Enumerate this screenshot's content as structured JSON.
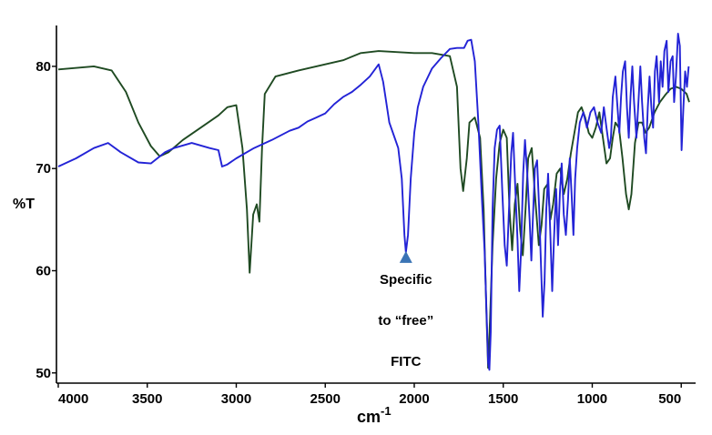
{
  "chart_data": {
    "type": "line",
    "title": "",
    "xlabel": "cm",
    "xlabel_superscript": "-1",
    "ylabel": "%T",
    "xlim": [
      4000,
      450
    ],
    "ylim": [
      49,
      84
    ],
    "x_reversed": true,
    "grid": false,
    "x_ticks": [
      4000,
      3500,
      3000,
      2500,
      2000,
      1500,
      1000,
      500
    ],
    "y_ticks": [
      50,
      60,
      70,
      80
    ],
    "series": [
      {
        "color": "#1f4a22",
        "points": [
          [
            4000,
            79.7
          ],
          [
            3800,
            80.0
          ],
          [
            3700,
            79.6
          ],
          [
            3620,
            77.5
          ],
          [
            3550,
            74.5
          ],
          [
            3480,
            72.2
          ],
          [
            3430,
            71.2
          ],
          [
            3380,
            71.6
          ],
          [
            3300,
            72.8
          ],
          [
            3200,
            74.0
          ],
          [
            3100,
            75.2
          ],
          [
            3050,
            76.0
          ],
          [
            3000,
            76.2
          ],
          [
            2965,
            72.0
          ],
          [
            2940,
            66.0
          ],
          [
            2925,
            59.8
          ],
          [
            2905,
            65.5
          ],
          [
            2885,
            66.5
          ],
          [
            2870,
            64.8
          ],
          [
            2855,
            72.0
          ],
          [
            2840,
            77.3
          ],
          [
            2780,
            79.0
          ],
          [
            2650,
            79.6
          ],
          [
            2500,
            80.2
          ],
          [
            2400,
            80.6
          ],
          [
            2300,
            81.3
          ],
          [
            2200,
            81.5
          ],
          [
            2100,
            81.4
          ],
          [
            2000,
            81.3
          ],
          [
            1900,
            81.3
          ],
          [
            1800,
            81.0
          ],
          [
            1760,
            78.0
          ],
          [
            1740,
            70.0
          ],
          [
            1725,
            67.8
          ],
          [
            1705,
            71.0
          ],
          [
            1690,
            74.5
          ],
          [
            1660,
            75.0
          ],
          [
            1630,
            73.0
          ],
          [
            1610,
            66.0
          ],
          [
            1595,
            56.0
          ],
          [
            1585,
            50.5
          ],
          [
            1575,
            55.0
          ],
          [
            1560,
            62.5
          ],
          [
            1540,
            69.0
          ],
          [
            1520,
            72.5
          ],
          [
            1500,
            73.8
          ],
          [
            1480,
            73.0
          ],
          [
            1465,
            66.0
          ],
          [
            1450,
            62.0
          ],
          [
            1435,
            66.5
          ],
          [
            1420,
            68.5
          ],
          [
            1405,
            64.0
          ],
          [
            1390,
            61.5
          ],
          [
            1375,
            66.0
          ],
          [
            1360,
            71.0
          ],
          [
            1340,
            72.0
          ],
          [
            1320,
            67.0
          ],
          [
            1300,
            62.5
          ],
          [
            1285,
            64.5
          ],
          [
            1270,
            68.0
          ],
          [
            1250,
            68.5
          ],
          [
            1235,
            65.0
          ],
          [
            1220,
            66.5
          ],
          [
            1200,
            69.5
          ],
          [
            1180,
            70.0
          ],
          [
            1160,
            67.5
          ],
          [
            1140,
            69.0
          ],
          [
            1120,
            71.5
          ],
          [
            1100,
            73.5
          ],
          [
            1080,
            75.5
          ],
          [
            1060,
            76.0
          ],
          [
            1040,
            75.0
          ],
          [
            1020,
            73.5
          ],
          [
            1000,
            73.0
          ],
          [
            980,
            74.0
          ],
          [
            960,
            75.5
          ],
          [
            940,
            73.0
          ],
          [
            920,
            70.5
          ],
          [
            900,
            71.0
          ],
          [
            885,
            73.0
          ],
          [
            870,
            74.5
          ],
          [
            850,
            74.0
          ],
          [
            830,
            71.0
          ],
          [
            810,
            67.5
          ],
          [
            795,
            66.0
          ],
          [
            780,
            67.5
          ],
          [
            760,
            72.5
          ],
          [
            740,
            74.5
          ],
          [
            720,
            74.5
          ],
          [
            700,
            73.5
          ],
          [
            680,
            74.0
          ],
          [
            650,
            75.5
          ],
          [
            620,
            76.5
          ],
          [
            590,
            77.2
          ],
          [
            560,
            77.8
          ],
          [
            530,
            78.0
          ],
          [
            500,
            77.8
          ],
          [
            470,
            77.3
          ],
          [
            455,
            76.5
          ]
        ]
      },
      {
        "color": "#2323d6",
        "points": [
          [
            4000,
            70.2
          ],
          [
            3900,
            71.0
          ],
          [
            3800,
            72.0
          ],
          [
            3720,
            72.5
          ],
          [
            3650,
            71.6
          ],
          [
            3550,
            70.6
          ],
          [
            3480,
            70.5
          ],
          [
            3400,
            71.6
          ],
          [
            3350,
            72.0
          ],
          [
            3250,
            72.5
          ],
          [
            3150,
            72.0
          ],
          [
            3100,
            71.8
          ],
          [
            3080,
            70.2
          ],
          [
            3050,
            70.4
          ],
          [
            3000,
            71.0
          ],
          [
            2900,
            72.0
          ],
          [
            2800,
            72.8
          ],
          [
            2700,
            73.7
          ],
          [
            2650,
            74.0
          ],
          [
            2600,
            74.6
          ],
          [
            2550,
            75.0
          ],
          [
            2500,
            75.4
          ],
          [
            2450,
            76.3
          ],
          [
            2400,
            77.0
          ],
          [
            2350,
            77.5
          ],
          [
            2300,
            78.2
          ],
          [
            2250,
            79.0
          ],
          [
            2200,
            80.2
          ],
          [
            2175,
            78.5
          ],
          [
            2160,
            76.8
          ],
          [
            2140,
            74.5
          ],
          [
            2110,
            73.0
          ],
          [
            2090,
            72.0
          ],
          [
            2070,
            69.0
          ],
          [
            2055,
            63.5
          ],
          [
            2047,
            61.8
          ],
          [
            2035,
            63.5
          ],
          [
            2020,
            69.0
          ],
          [
            2000,
            73.5
          ],
          [
            1980,
            76.0
          ],
          [
            1950,
            78.0
          ],
          [
            1900,
            79.8
          ],
          [
            1850,
            80.8
          ],
          [
            1800,
            81.7
          ],
          [
            1760,
            81.8
          ],
          [
            1720,
            81.8
          ],
          [
            1700,
            82.5
          ],
          [
            1680,
            82.6
          ],
          [
            1660,
            80.5
          ],
          [
            1640,
            74.5
          ],
          [
            1620,
            67.0
          ],
          [
            1605,
            62.0
          ],
          [
            1592,
            55.0
          ],
          [
            1585,
            51.0
          ],
          [
            1578,
            50.3
          ],
          [
            1570,
            54.0
          ],
          [
            1560,
            66.0
          ],
          [
            1548,
            72.0
          ],
          [
            1535,
            73.8
          ],
          [
            1520,
            74.2
          ],
          [
            1505,
            67.5
          ],
          [
            1492,
            62.5
          ],
          [
            1480,
            60.5
          ],
          [
            1470,
            65.0
          ],
          [
            1455,
            71.5
          ],
          [
            1445,
            73.5
          ],
          [
            1432,
            68.0
          ],
          [
            1420,
            63.0
          ],
          [
            1410,
            58.0
          ],
          [
            1400,
            62.0
          ],
          [
            1388,
            69.5
          ],
          [
            1378,
            72.8
          ],
          [
            1365,
            69.5
          ],
          [
            1352,
            65.0
          ],
          [
            1342,
            61.0
          ],
          [
            1335,
            64.5
          ],
          [
            1322,
            70.0
          ],
          [
            1310,
            70.8
          ],
          [
            1298,
            66.0
          ],
          [
            1288,
            60.5
          ],
          [
            1278,
            55.5
          ],
          [
            1268,
            59.0
          ],
          [
            1258,
            66.0
          ],
          [
            1248,
            69.5
          ],
          [
            1236,
            64.0
          ],
          [
            1225,
            58.0
          ],
          [
            1215,
            63.0
          ],
          [
            1203,
            68.0
          ],
          [
            1192,
            62.5
          ],
          [
            1182,
            67.5
          ],
          [
            1172,
            70.5
          ],
          [
            1160,
            65.5
          ],
          [
            1148,
            63.5
          ],
          [
            1136,
            67.0
          ],
          [
            1126,
            71.0
          ],
          [
            1116,
            67.5
          ],
          [
            1106,
            63.5
          ],
          [
            1096,
            69.0
          ],
          [
            1085,
            72.0
          ],
          [
            1070,
            74.5
          ],
          [
            1050,
            75.5
          ],
          [
            1030,
            74.0
          ],
          [
            1010,
            75.5
          ],
          [
            990,
            76.0
          ],
          [
            970,
            74.5
          ],
          [
            950,
            73.5
          ],
          [
            935,
            76.0
          ],
          [
            920,
            74.0
          ],
          [
            905,
            72.0
          ],
          [
            895,
            73.0
          ],
          [
            885,
            77.0
          ],
          [
            870,
            79.0
          ],
          [
            860,
            76.5
          ],
          [
            848,
            73.5
          ],
          [
            838,
            77.0
          ],
          [
            828,
            79.5
          ],
          [
            815,
            80.5
          ],
          [
            805,
            76.0
          ],
          [
            795,
            73.0
          ],
          [
            785,
            77.0
          ],
          [
            775,
            80.0
          ],
          [
            765,
            76.5
          ],
          [
            752,
            73.0
          ],
          [
            742,
            76.0
          ],
          [
            730,
            80.0
          ],
          [
            720,
            76.5
          ],
          [
            708,
            73.0
          ],
          [
            698,
            71.5
          ],
          [
            688,
            76.0
          ],
          [
            678,
            79.0
          ],
          [
            668,
            76.0
          ],
          [
            658,
            74.0
          ],
          [
            648,
            79.5
          ],
          [
            638,
            81.0
          ],
          [
            625,
            76.5
          ],
          [
            615,
            80.5
          ],
          [
            605,
            78.0
          ],
          [
            595,
            81.5
          ],
          [
            582,
            82.5
          ],
          [
            572,
            77.5
          ],
          [
            560,
            80.5
          ],
          [
            548,
            81.0
          ],
          [
            540,
            76.5
          ],
          [
            530,
            79.0
          ],
          [
            518,
            83.2
          ],
          [
            508,
            82.0
          ],
          [
            498,
            71.8
          ],
          [
            488,
            76.0
          ],
          [
            478,
            79.5
          ],
          [
            468,
            78.0
          ],
          [
            458,
            80.0
          ]
        ]
      }
    ],
    "annotations": [
      {
        "lines": [
          "Specific",
          "to “free”",
          "FITC"
        ],
        "marker": "triangle",
        "marker_color": "#3b74b5",
        "marker_x": 2047,
        "marker_y": 61.3
      }
    ]
  }
}
